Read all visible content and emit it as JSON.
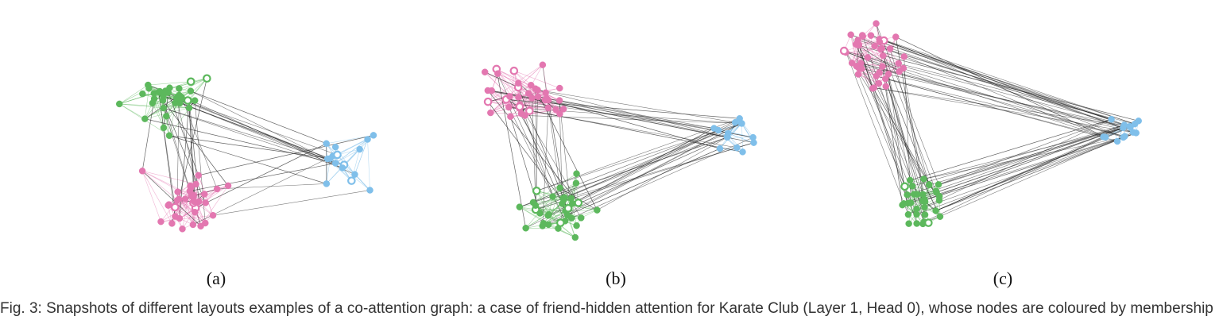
{
  "figure": {
    "panels": [
      {
        "label": "(a)"
      },
      {
        "label": "(b)"
      },
      {
        "label": "(c)"
      }
    ],
    "caption": "Fig. 3: Snapshots of different layouts examples of a co-attention graph: a case of friend-hidden attention for Karate Club (Layer 1, Head 0), whose nodes are coloured by membership"
  },
  "colors": {
    "green": "#5cb85c",
    "pink": "#e377b0",
    "blue": "#7fbfea",
    "edge_dark": "#222222"
  }
}
